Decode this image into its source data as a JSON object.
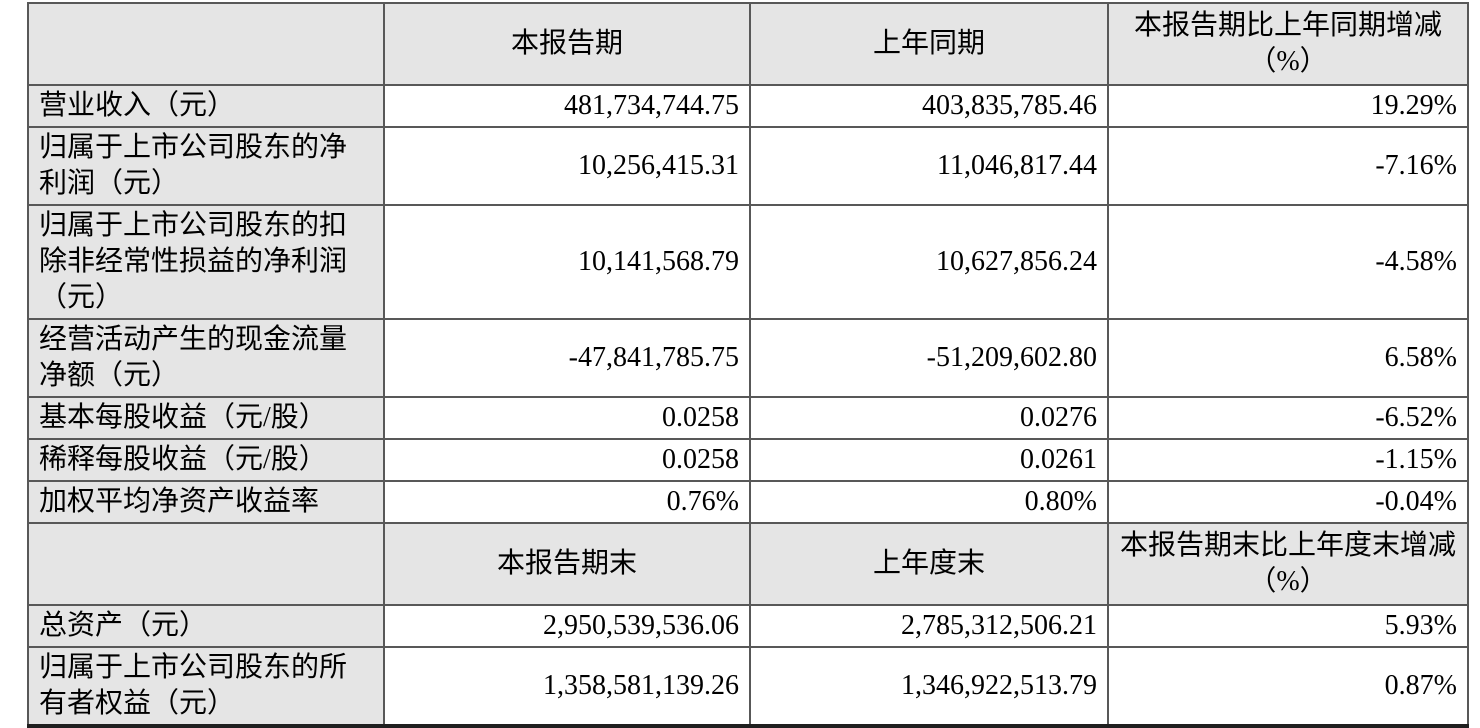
{
  "doc": {
    "type": "financial-summary-table",
    "colors": {
      "header_bg": "#e5e5e5",
      "label_bg": "#e5e5e5",
      "cell_bg": "#ffffff",
      "border": "#585858",
      "text": "#000000"
    }
  },
  "sections": [
    {
      "header": {
        "metric": "",
        "current": "本报告期",
        "prior": "上年同期",
        "change_line1": "本报告期比上年同期增减",
        "change_line2": "（%）"
      },
      "rows": [
        {
          "label": "营业收入（元）",
          "current": "481,734,744.75",
          "prior": "403,835,785.46",
          "change": "19.29%"
        },
        {
          "label": "归属于上市公司股东的净利润（元）",
          "current": "10,256,415.31",
          "prior": "11,046,817.44",
          "change": "-7.16%"
        },
        {
          "label": "归属于上市公司股东的扣除非经常性损益的净利润（元）",
          "current": "10,141,568.79",
          "prior": "10,627,856.24",
          "change": "-4.58%"
        },
        {
          "label": "经营活动产生的现金流量净额（元）",
          "current": "-47,841,785.75",
          "prior": "-51,209,602.80",
          "change": "6.58%"
        },
        {
          "label": "基本每股收益（元/股）",
          "current": "0.0258",
          "prior": "0.0276",
          "change": "-6.52%"
        },
        {
          "label": "稀释每股收益（元/股）",
          "current": "0.0258",
          "prior": "0.0261",
          "change": "-1.15%"
        },
        {
          "label": "加权平均净资产收益率",
          "current": "0.76%",
          "prior": "0.80%",
          "change": "-0.04%"
        }
      ]
    },
    {
      "header": {
        "metric": "",
        "current": "本报告期末",
        "prior": "上年度末",
        "change_line1": "本报告期末比上年度末增减",
        "change_line2": "（%）"
      },
      "rows": [
        {
          "label": "总资产（元）",
          "current": "2,950,539,536.06",
          "prior": "2,785,312,506.21",
          "change": "5.93%"
        },
        {
          "label": "归属于上市公司股东的所有者权益（元）",
          "current": "1,358,581,139.26",
          "prior": "1,346,922,513.79",
          "change": "0.87%"
        }
      ]
    }
  ]
}
